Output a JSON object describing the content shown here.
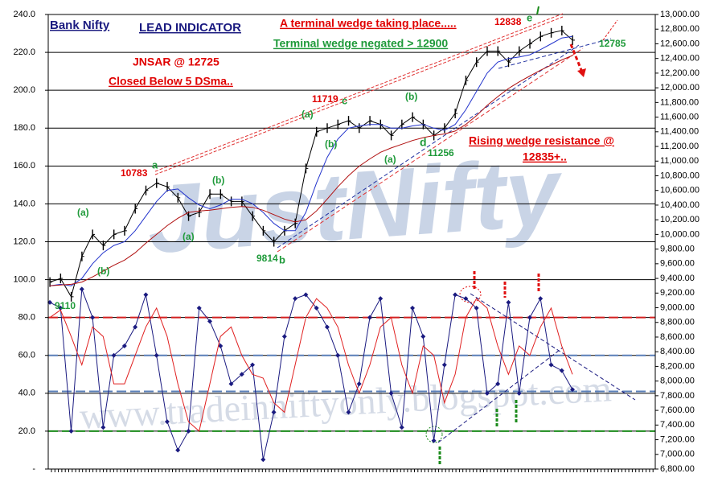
{
  "chart_data": {
    "type": "line",
    "watermarks": [
      "JustNifty",
      "www.tradeinniftyonly.blogspot.com"
    ],
    "annotations": [
      {
        "text": "Bank Nifty",
        "color": "#1a1a80"
      },
      {
        "text": "LEAD INDICATOR",
        "color": "#1a1a80"
      },
      {
        "text": "A terminal wedge taking place.....",
        "color": "#e00000"
      },
      {
        "text": "Terminal wedge negated > 12900",
        "color": "#1f9a3a"
      },
      {
        "text": "12838",
        "color": "#e00000"
      },
      {
        "text": "e",
        "color": "#1f9a3a"
      },
      {
        "text": "12785",
        "color": "#1f9a3a"
      },
      {
        "text": "JNSAR @ 12725",
        "color": "#e00000"
      },
      {
        "text": "Closed  Below 5 DSma..",
        "color": "#e00000"
      },
      {
        "text": "11719",
        "color": "#e00000"
      },
      {
        "text": "c",
        "color": "#1f9a3a"
      },
      {
        "text": "(a)",
        "color": "#1f9a3a"
      },
      {
        "text": "(b)",
        "color": "#1f9a3a"
      },
      {
        "text": "(b)",
        "color": "#1f9a3a"
      },
      {
        "text": "(a)",
        "color": "#1f9a3a"
      },
      {
        "text": "11256",
        "color": "#1f9a3a"
      },
      {
        "text": "d",
        "color": "#1f9a3a"
      },
      {
        "text": "Rising wedge resistance @",
        "color": "#e00000"
      },
      {
        "text": "12835+..",
        "color": "#e00000"
      },
      {
        "text": "10783",
        "color": "#e00000"
      },
      {
        "text": "a",
        "color": "#1f9a3a"
      },
      {
        "text": "(b)",
        "color": "#1f9a3a"
      },
      {
        "text": "(a)",
        "color": "#1f9a3a"
      },
      {
        "text": "(b)",
        "color": "#1f9a3a"
      },
      {
        "text": "(a)",
        "color": "#1f9a3a"
      },
      {
        "text": "9814",
        "color": "#1f9a3a"
      },
      {
        "text": "b",
        "color": "#1f9a3a"
      },
      {
        "text": "9110",
        "color": "#1f9a3a"
      }
    ],
    "ylim": [
      0,
      240
    ],
    "yticks": [
      {
        "value": 0,
        "label": "-"
      },
      {
        "value": 20,
        "label": "20.0"
      },
      {
        "value": 40,
        "label": "40.0"
      },
      {
        "value": 60,
        "label": "60.0"
      },
      {
        "value": 80,
        "label": "80.0"
      },
      {
        "value": 100,
        "label": "100.0"
      },
      {
        "value": 120,
        "label": "120.0"
      },
      {
        "value": 140,
        "label": "140.0"
      },
      {
        "value": 160,
        "label": "160.0"
      },
      {
        "value": 180,
        "label": "180.0"
      },
      {
        "value": 200,
        "label": "200.0"
      },
      {
        "value": 220,
        "label": "220.0"
      },
      {
        "value": 240,
        "label": "240.0"
      }
    ],
    "y2lim": [
      6800,
      13000
    ],
    "y2ticks": [
      {
        "value": 6800,
        "label": "6,800.00"
      },
      {
        "value": 7000,
        "label": "7,000.00"
      },
      {
        "value": 7200,
        "label": "7,200.00"
      },
      {
        "value": 7400,
        "label": "7,400.00"
      },
      {
        "value": 7600,
        "label": "7,600.00"
      },
      {
        "value": 7800,
        "label": "7,800.00"
      },
      {
        "value": 8000,
        "label": "8,000.00"
      },
      {
        "value": 8200,
        "label": "8,200.00"
      },
      {
        "value": 8400,
        "label": "8,400.00"
      },
      {
        "value": 8600,
        "label": "8,600.00"
      },
      {
        "value": 8800,
        "label": "8,800.00"
      },
      {
        "value": 9000,
        "label": "9,000.00"
      },
      {
        "value": 9200,
        "label": "9,200.00"
      },
      {
        "value": 9400,
        "label": "9,400.00"
      },
      {
        "value": 9600,
        "label": "9,600.00"
      },
      {
        "value": 9800,
        "label": "9,800.00"
      },
      {
        "value": 10000,
        "label": "10,000.00"
      },
      {
        "value": 10200,
        "label": "10,200.00"
      },
      {
        "value": 10400,
        "label": "10,400.00"
      },
      {
        "value": 10600,
        "label": "10,600.00"
      },
      {
        "value": 10800,
        "label": "10,800.00"
      },
      {
        "value": 11000,
        "label": "11,000.00"
      },
      {
        "value": 11200,
        "label": "11,200.00"
      },
      {
        "value": 11400,
        "label": "11,400.00"
      },
      {
        "value": 11600,
        "label": "11,600.00"
      },
      {
        "value": 11800,
        "label": "11,800.00"
      },
      {
        "value": 12000,
        "label": "12,000.00"
      },
      {
        "value": 12200,
        "label": "12,200.00"
      },
      {
        "value": 12400,
        "label": "12,400.00"
      },
      {
        "value": 12600,
        "label": "12,600.00"
      },
      {
        "value": 12800,
        "label": "12,800.00"
      },
      {
        "value": 13000,
        "label": "13,000.00"
      }
    ],
    "grid": true,
    "reference_lines": [
      {
        "value": 80,
        "color": "#d42020"
      },
      {
        "value": 60,
        "color": "#5a7fb8"
      },
      {
        "value": 41,
        "color": "#5a7fb8"
      },
      {
        "value": 20,
        "color": "#1a8a1a"
      }
    ],
    "series": [
      {
        "axis": "y2",
        "color": "#000000",
        "marker": "bar",
        "values": [
          9350,
          9400,
          9150,
          9700,
          10000,
          9850,
          10000,
          10050,
          10350,
          10600,
          10700,
          10650,
          10500,
          10250,
          10300,
          10550,
          10550,
          10450,
          10450,
          10250,
          10050,
          9900,
          10050,
          10150,
          10900,
          11400,
          11450,
          11500,
          11550,
          11450,
          11550,
          11500,
          11350,
          11500,
          11600,
          11500,
          11350,
          11450,
          11650,
          12100,
          12350,
          12500,
          12500,
          12350,
          12500,
          12600,
          12700,
          12750,
          12780,
          12650
        ]
      },
      {
        "axis": "y2",
        "color": "#2233cc",
        "values": [
          9300,
          9320,
          9300,
          9400,
          9600,
          9750,
          9850,
          9900,
          10050,
          10250,
          10450,
          10600,
          10620,
          10500,
          10400,
          10350,
          10400,
          10480,
          10480,
          10420,
          10300,
          10150,
          10050,
          10050,
          10300,
          10700,
          11050,
          11300,
          11450,
          11480,
          11500,
          11500,
          11450,
          11450,
          11480,
          11500,
          11450,
          11420,
          11500,
          11700,
          11950,
          12200,
          12350,
          12400,
          12420,
          12450,
          12520,
          12600,
          12680,
          12700
        ]
      },
      {
        "axis": "y2",
        "color": "#b01010",
        "values": [
          9300,
          9310,
          9320,
          9350,
          9420,
          9500,
          9580,
          9650,
          9750,
          9880,
          10000,
          10120,
          10220,
          10300,
          10320,
          10330,
          10350,
          10370,
          10380,
          10370,
          10330,
          10270,
          10210,
          10170,
          10200,
          10320,
          10480,
          10650,
          10800,
          10930,
          11030,
          11120,
          11180,
          11230,
          11280,
          11320,
          11350,
          11370,
          11410,
          11500,
          11620,
          11760,
          11880,
          11990,
          12080,
          12160,
          12240,
          12310,
          12380,
          12440
        ]
      },
      {
        "color": "#1a1a80",
        "marker": "diamond",
        "values": [
          88,
          85,
          20,
          95,
          80,
          22,
          60,
          65,
          75,
          92,
          60,
          25,
          10,
          20,
          85,
          78,
          65,
          45,
          50,
          55,
          5,
          30,
          70,
          90,
          92,
          85,
          75,
          60,
          30,
          45,
          80,
          90,
          40,
          22,
          85,
          70,
          15,
          55,
          92,
          90,
          85,
          40,
          45,
          88,
          40,
          80,
          90,
          55,
          52,
          42
        ]
      },
      {
        "color": "#e02020",
        "values": [
          80,
          84,
          70,
          55,
          75,
          70,
          45,
          45,
          60,
          75,
          85,
          70,
          45,
          25,
          20,
          45,
          70,
          75,
          60,
          50,
          48,
          35,
          30,
          55,
          80,
          90,
          85,
          75,
          55,
          40,
          55,
          75,
          80,
          55,
          40,
          65,
          60,
          35,
          50,
          80,
          90,
          85,
          65,
          50,
          65,
          60,
          75,
          85,
          65,
          50
        ]
      }
    ]
  }
}
